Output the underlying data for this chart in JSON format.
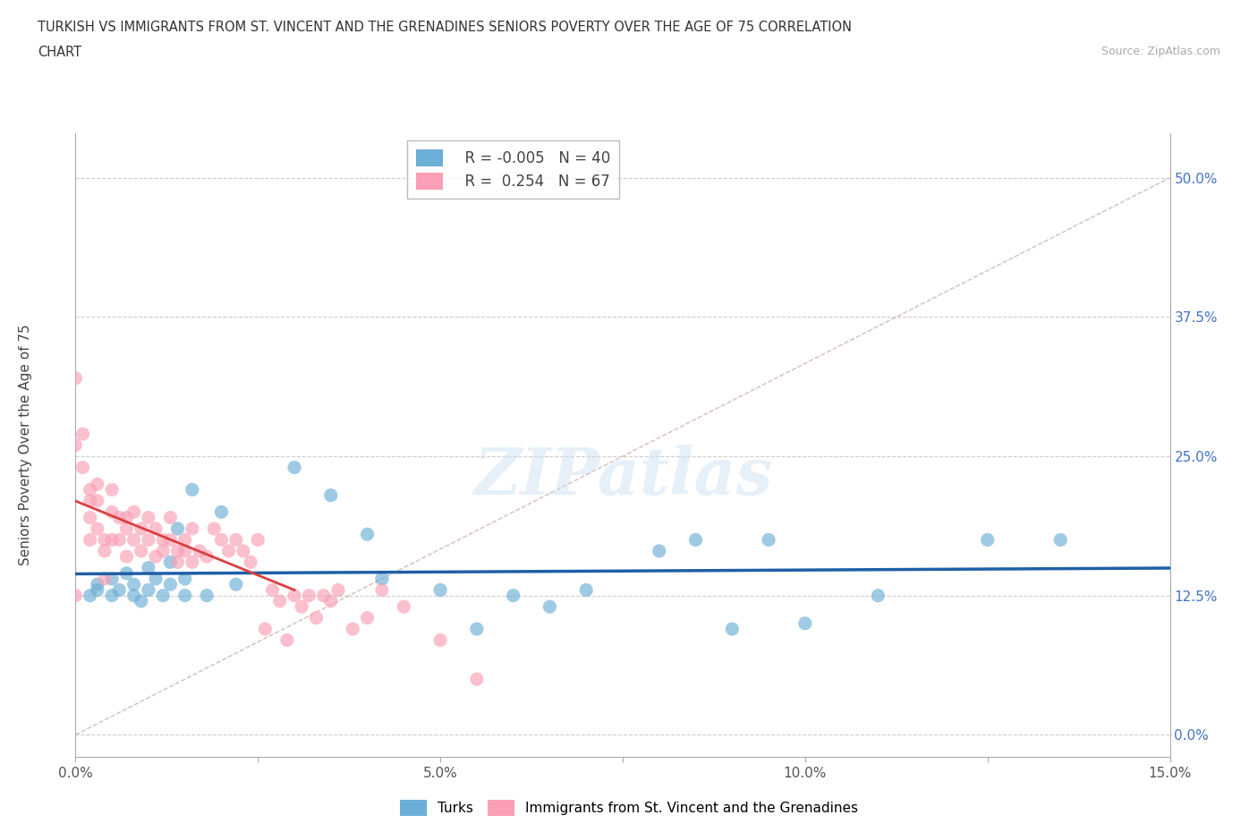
{
  "title_line1": "TURKISH VS IMMIGRANTS FROM ST. VINCENT AND THE GRENADINES SENIORS POVERTY OVER THE AGE OF 75 CORRELATION",
  "title_line2": "CHART",
  "source_text": "Source: ZipAtlas.com",
  "ylabel": "Seniors Poverty Over the Age of 75",
  "xmin": 0.0,
  "xmax": 0.15,
  "ymin": -0.02,
  "ymax": 0.54,
  "yticks": [
    0.0,
    0.125,
    0.25,
    0.375,
    0.5
  ],
  "ytick_labels": [
    "0.0%",
    "12.5%",
    "25.0%",
    "37.5%",
    "50.0%"
  ],
  "xticks": [
    0.0,
    0.025,
    0.05,
    0.075,
    0.1,
    0.125,
    0.15
  ],
  "xtick_labels": [
    "0.0%",
    "",
    "5.0%",
    "",
    "10.0%",
    "",
    "15.0%"
  ],
  "turks_color": "#6baed6",
  "svg_color": "#fa9fb5",
  "turks_line_color": "#1f5fa6",
  "svg_line_color": "#d94040",
  "diag_line_color": "#ccaaaa",
  "turks_x": [
    0.002,
    0.003,
    0.003,
    0.005,
    0.005,
    0.006,
    0.007,
    0.008,
    0.008,
    0.009,
    0.01,
    0.01,
    0.011,
    0.012,
    0.013,
    0.013,
    0.014,
    0.015,
    0.015,
    0.016,
    0.018,
    0.02,
    0.022,
    0.03,
    0.035,
    0.04,
    0.042,
    0.05,
    0.055,
    0.06,
    0.065,
    0.07,
    0.08,
    0.085,
    0.09,
    0.095,
    0.1,
    0.11,
    0.125,
    0.135
  ],
  "turks_y": [
    0.125,
    0.13,
    0.135,
    0.125,
    0.14,
    0.13,
    0.145,
    0.125,
    0.135,
    0.12,
    0.15,
    0.13,
    0.14,
    0.125,
    0.155,
    0.135,
    0.185,
    0.125,
    0.14,
    0.22,
    0.125,
    0.2,
    0.135,
    0.24,
    0.215,
    0.18,
    0.14,
    0.13,
    0.095,
    0.125,
    0.115,
    0.13,
    0.165,
    0.175,
    0.095,
    0.175,
    0.1,
    0.125,
    0.175,
    0.175
  ],
  "svincent_x": [
    0.0,
    0.0,
    0.0,
    0.001,
    0.001,
    0.002,
    0.002,
    0.002,
    0.002,
    0.003,
    0.003,
    0.003,
    0.004,
    0.004,
    0.004,
    0.005,
    0.005,
    0.005,
    0.006,
    0.006,
    0.007,
    0.007,
    0.007,
    0.008,
    0.008,
    0.009,
    0.009,
    0.01,
    0.01,
    0.011,
    0.011,
    0.012,
    0.012,
    0.013,
    0.013,
    0.014,
    0.014,
    0.015,
    0.015,
    0.016,
    0.016,
    0.017,
    0.018,
    0.019,
    0.02,
    0.021,
    0.022,
    0.023,
    0.024,
    0.025,
    0.026,
    0.027,
    0.028,
    0.029,
    0.03,
    0.031,
    0.032,
    0.033,
    0.034,
    0.035,
    0.036,
    0.038,
    0.04,
    0.042,
    0.045,
    0.05,
    0.055
  ],
  "svincent_y": [
    0.125,
    0.32,
    0.26,
    0.27,
    0.24,
    0.22,
    0.21,
    0.195,
    0.175,
    0.225,
    0.21,
    0.185,
    0.175,
    0.165,
    0.14,
    0.22,
    0.2,
    0.175,
    0.195,
    0.175,
    0.195,
    0.185,
    0.16,
    0.2,
    0.175,
    0.185,
    0.165,
    0.195,
    0.175,
    0.185,
    0.16,
    0.175,
    0.165,
    0.195,
    0.175,
    0.165,
    0.155,
    0.175,
    0.165,
    0.185,
    0.155,
    0.165,
    0.16,
    0.185,
    0.175,
    0.165,
    0.175,
    0.165,
    0.155,
    0.175,
    0.095,
    0.13,
    0.12,
    0.085,
    0.125,
    0.115,
    0.125,
    0.105,
    0.125,
    0.12,
    0.13,
    0.095,
    0.105,
    0.13,
    0.115,
    0.085,
    0.05
  ]
}
